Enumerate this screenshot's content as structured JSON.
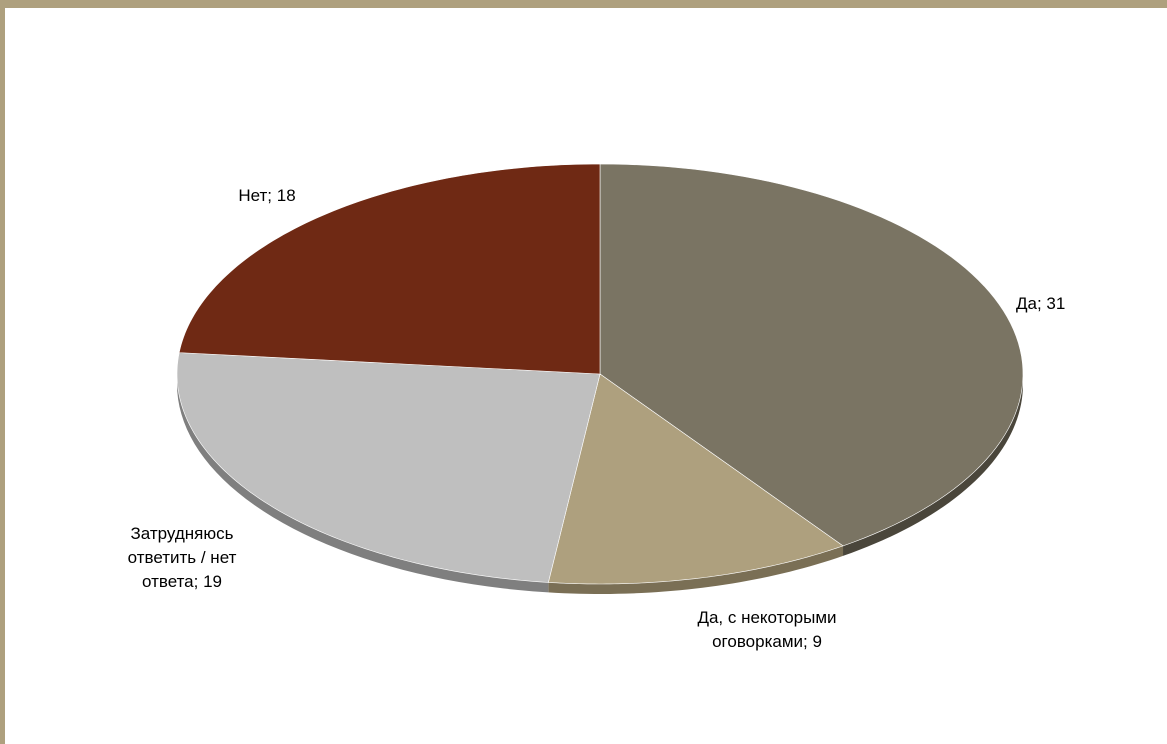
{
  "chart_data": {
    "type": "pie",
    "style": "3d",
    "categories": [
      "Да",
      "Да, с некоторыми оговорками",
      "Затрудняюсь ответить / нет ответа",
      "Нет"
    ],
    "values": [
      31,
      9,
      19,
      18
    ],
    "colors": [
      "#7a7463",
      "#aea07e",
      "#bfbfbf",
      "#6f2914"
    ],
    "depth_colors": [
      "#4a463b",
      "#7a6f55",
      "#7f7f7f",
      "#4a1b0d"
    ],
    "labels": [
      {
        "lines": [
          "Да; 31"
        ]
      },
      {
        "lines": [
          "Да, с некоторыми",
          "оговорками; 9"
        ]
      },
      {
        "lines": [
          "Затрудняюсь",
          "ответить / нет",
          "ответа; 19"
        ]
      },
      {
        "lines": [
          "Нет; 18"
        ]
      }
    ],
    "legend": "none"
  },
  "frame": {
    "border_color": "#aea07e"
  }
}
